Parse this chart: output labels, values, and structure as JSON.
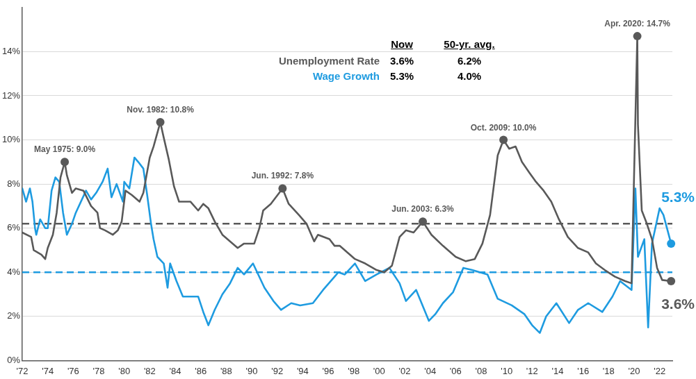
{
  "chart_data": {
    "type": "line",
    "xlim": [
      1972,
      2023
    ],
    "xticks": [
      {
        "value": 1972,
        "label": "'72"
      },
      {
        "value": 1974,
        "label": "'74"
      },
      {
        "value": 1976,
        "label": "'76"
      },
      {
        "value": 1978,
        "label": "'78"
      },
      {
        "value": 1980,
        "label": "'80"
      },
      {
        "value": 1982,
        "label": "'82"
      },
      {
        "value": 1984,
        "label": "'84"
      },
      {
        "value": 1986,
        "label": "'86"
      },
      {
        "value": 1988,
        "label": "'88"
      },
      {
        "value": 1990,
        "label": "'90"
      },
      {
        "value": 1992,
        "label": "'92"
      },
      {
        "value": 1994,
        "label": "'94"
      },
      {
        "value": 1996,
        "label": "'96"
      },
      {
        "value": 1998,
        "label": "'98"
      },
      {
        "value": 2000,
        "label": "'00"
      },
      {
        "value": 2002,
        "label": "'02"
      },
      {
        "value": 2004,
        "label": "'04"
      },
      {
        "value": 2006,
        "label": "'06"
      },
      {
        "value": 2008,
        "label": "'08"
      },
      {
        "value": 2010,
        "label": "'10"
      },
      {
        "value": 2012,
        "label": "'12"
      },
      {
        "value": 2014,
        "label": "'14"
      },
      {
        "value": 2016,
        "label": "'16"
      },
      {
        "value": 2018,
        "label": "'18"
      },
      {
        "value": 2020,
        "label": "'20"
      },
      {
        "value": 2022,
        "label": "'22"
      }
    ],
    "ylim": [
      0,
      16
    ],
    "yticks": [
      {
        "value": 0,
        "label": "0%"
      },
      {
        "value": 2,
        "label": "2%"
      },
      {
        "value": 4,
        "label": "4%"
      },
      {
        "value": 6,
        "label": "6%"
      },
      {
        "value": 8,
        "label": "8%"
      },
      {
        "value": 10,
        "label": "10%"
      },
      {
        "value": 12,
        "label": "12%"
      },
      {
        "value": 14,
        "label": "14%"
      }
    ],
    "grid": "y",
    "marker": "none",
    "line_style": "solid",
    "series": [
      {
        "name": "Unemployment Rate",
        "color": "#595959",
        "x": [
          1972.0,
          1972.7,
          1972.9,
          1973.5,
          1973.8,
          1974.0,
          1974.4,
          1974.7,
          1975.0,
          1975.33,
          1975.5,
          1975.9,
          1976.2,
          1976.8,
          1977.4,
          1977.9,
          1978.1,
          1978.5,
          1979.1,
          1979.5,
          1979.8,
          1980.1,
          1980.6,
          1981.2,
          1981.5,
          1982.0,
          1982.3,
          1982.83,
          1983.1,
          1983.5,
          1983.9,
          1984.3,
          1985.2,
          1985.8,
          1986.2,
          1986.6,
          1987.1,
          1987.7,
          1988.3,
          1988.9,
          1989.4,
          1990.2,
          1990.6,
          1990.9,
          1991.5,
          1992.42,
          1992.9,
          1993.7,
          1994.3,
          1994.9,
          1995.2,
          1996.1,
          1996.5,
          1996.9,
          1998.1,
          1998.9,
          1999.8,
          2000.4,
          2001.0,
          2001.6,
          2002.1,
          2002.7,
          2003.42,
          2004.1,
          2005.0,
          2006.0,
          2006.8,
          2007.5,
          2008.1,
          2008.7,
          2009.3,
          2009.75,
          2010.2,
          2010.7,
          2011.2,
          2011.8,
          2012.3,
          2012.9,
          2013.5,
          2014.1,
          2014.8,
          2015.6,
          2016.4,
          2017.0,
          2017.7,
          2018.5,
          2019.3,
          2019.8,
          2020.25,
          2020.3,
          2020.6,
          2021.0,
          2021.4,
          2021.8,
          2022.2,
          2022.9
        ],
        "values": [
          5.8,
          5.6,
          5.0,
          4.8,
          4.6,
          5.1,
          5.7,
          6.7,
          8.3,
          9.0,
          8.4,
          7.6,
          7.8,
          7.7,
          7.0,
          6.7,
          6.0,
          5.9,
          5.7,
          5.9,
          6.3,
          7.7,
          7.5,
          7.2,
          7.6,
          9.2,
          9.7,
          10.8,
          10.1,
          9.1,
          7.9,
          7.2,
          7.2,
          6.8,
          7.1,
          6.9,
          6.3,
          5.7,
          5.4,
          5.1,
          5.3,
          5.3,
          6.0,
          6.8,
          7.1,
          7.8,
          7.1,
          6.6,
          6.2,
          5.4,
          5.7,
          5.5,
          5.2,
          5.2,
          4.6,
          4.4,
          4.1,
          4.0,
          4.3,
          5.6,
          5.9,
          5.8,
          6.3,
          5.7,
          5.2,
          4.7,
          4.5,
          4.6,
          5.3,
          6.6,
          9.3,
          10.0,
          9.6,
          9.7,
          9.0,
          8.5,
          8.1,
          7.7,
          7.2,
          6.4,
          5.6,
          5.1,
          4.9,
          4.4,
          4.1,
          3.8,
          3.6,
          3.5,
          14.7,
          10.7,
          6.8,
          6.2,
          5.5,
          4.2,
          3.65,
          3.6
        ]
      },
      {
        "name": "Wage Growth",
        "color": "#1e9be0",
        "x": [
          1972.0,
          1972.3,
          1972.6,
          1972.8,
          1973.0,
          1973.1,
          1973.4,
          1973.8,
          1974.0,
          1974.3,
          1974.6,
          1974.9,
          1975.2,
          1975.5,
          1975.9,
          1976.2,
          1977.0,
          1977.4,
          1977.8,
          1978.3,
          1978.7,
          1979.0,
          1979.4,
          1979.9,
          1980.0,
          1980.4,
          1980.8,
          1981.1,
          1981.5,
          1981.8,
          1982.1,
          1982.3,
          1982.6,
          1983.1,
          1983.4,
          1983.6,
          1984.1,
          1984.6,
          1985.8,
          1986.2,
          1986.6,
          1987.1,
          1987.7,
          1988.3,
          1988.9,
          1989.4,
          1990.1,
          1991.0,
          1991.7,
          1992.3,
          1993.1,
          1993.8,
          1994.8,
          1995.6,
          1996.5,
          1996.8,
          1997.3,
          1998.1,
          1998.9,
          1999.8,
          2000.8,
          2001.6,
          2002.1,
          2002.9,
          2003.9,
          2004.4,
          2005.0,
          2005.8,
          2006.6,
          2007.3,
          2008.5,
          2009.3,
          2010.4,
          2011.4,
          2012.0,
          2012.6,
          2013.1,
          2013.9,
          2014.9,
          2015.6,
          2016.4,
          2017.5,
          2018.3,
          2018.9,
          2019.8,
          2020.1,
          2020.3,
          2020.8,
          2021.1,
          2021.4,
          2022.0,
          2022.3,
          2022.9
        ],
        "values": [
          7.8,
          7.2,
          7.8,
          7.2,
          6.0,
          5.7,
          6.4,
          6.0,
          6.0,
          7.7,
          8.3,
          8.1,
          6.7,
          5.7,
          6.2,
          6.7,
          7.7,
          7.3,
          7.6,
          8.1,
          8.7,
          7.4,
          8.0,
          7.2,
          8.1,
          7.8,
          9.2,
          9.0,
          8.7,
          7.5,
          6.2,
          5.5,
          4.7,
          4.4,
          3.3,
          4.4,
          3.6,
          2.9,
          2.9,
          2.2,
          1.6,
          2.3,
          3.0,
          3.5,
          4.2,
          3.9,
          4.4,
          3.3,
          2.7,
          2.3,
          2.6,
          2.5,
          2.6,
          3.2,
          3.8,
          4.0,
          3.9,
          4.4,
          3.6,
          3.9,
          4.2,
          3.5,
          2.7,
          3.2,
          1.8,
          2.1,
          2.6,
          3.1,
          4.2,
          4.1,
          3.9,
          2.8,
          2.5,
          2.1,
          1.6,
          1.25,
          2.0,
          2.6,
          1.7,
          2.3,
          2.6,
          2.2,
          2.9,
          3.6,
          3.2,
          7.8,
          4.7,
          5.5,
          1.5,
          5.3,
          6.9,
          6.6,
          5.3
        ]
      }
    ],
    "ref_lines": [
      {
        "axis": "y",
        "value": 6.2,
        "color": "#595959",
        "line_style": "dashed"
      },
      {
        "axis": "y",
        "value": 4.0,
        "color": "#1e9be0",
        "line_style": "dashed"
      }
    ],
    "annotations": [
      "Now",
      "50-yr. avg.",
      "3.6%",
      "6.2%",
      "5.3%",
      "4.0%",
      {
        "text": "May 1975: 9.0%",
        "x": 1975.33,
        "y": 9.0
      },
      {
        "text": "Nov. 1982: 10.8%",
        "x": 1982.83,
        "y": 10.8
      },
      {
        "text": "Jun. 1992: 7.8%",
        "x": 1992.42,
        "y": 7.8
      },
      {
        "text": "Jun. 2003: 6.3%",
        "x": 2003.42,
        "y": 6.3
      },
      {
        "text": "Oct. 2009: 10.0%",
        "x": 2009.75,
        "y": 10.0
      },
      {
        "text": "Apr. 2020: 14.7%",
        "x": 2020.25,
        "y": 14.7
      },
      {
        "text": "5.3%",
        "x": 2022.9,
        "y": 5.3
      },
      {
        "text": "3.6%",
        "x": 2022.9,
        "y": 3.6
      }
    ]
  }
}
